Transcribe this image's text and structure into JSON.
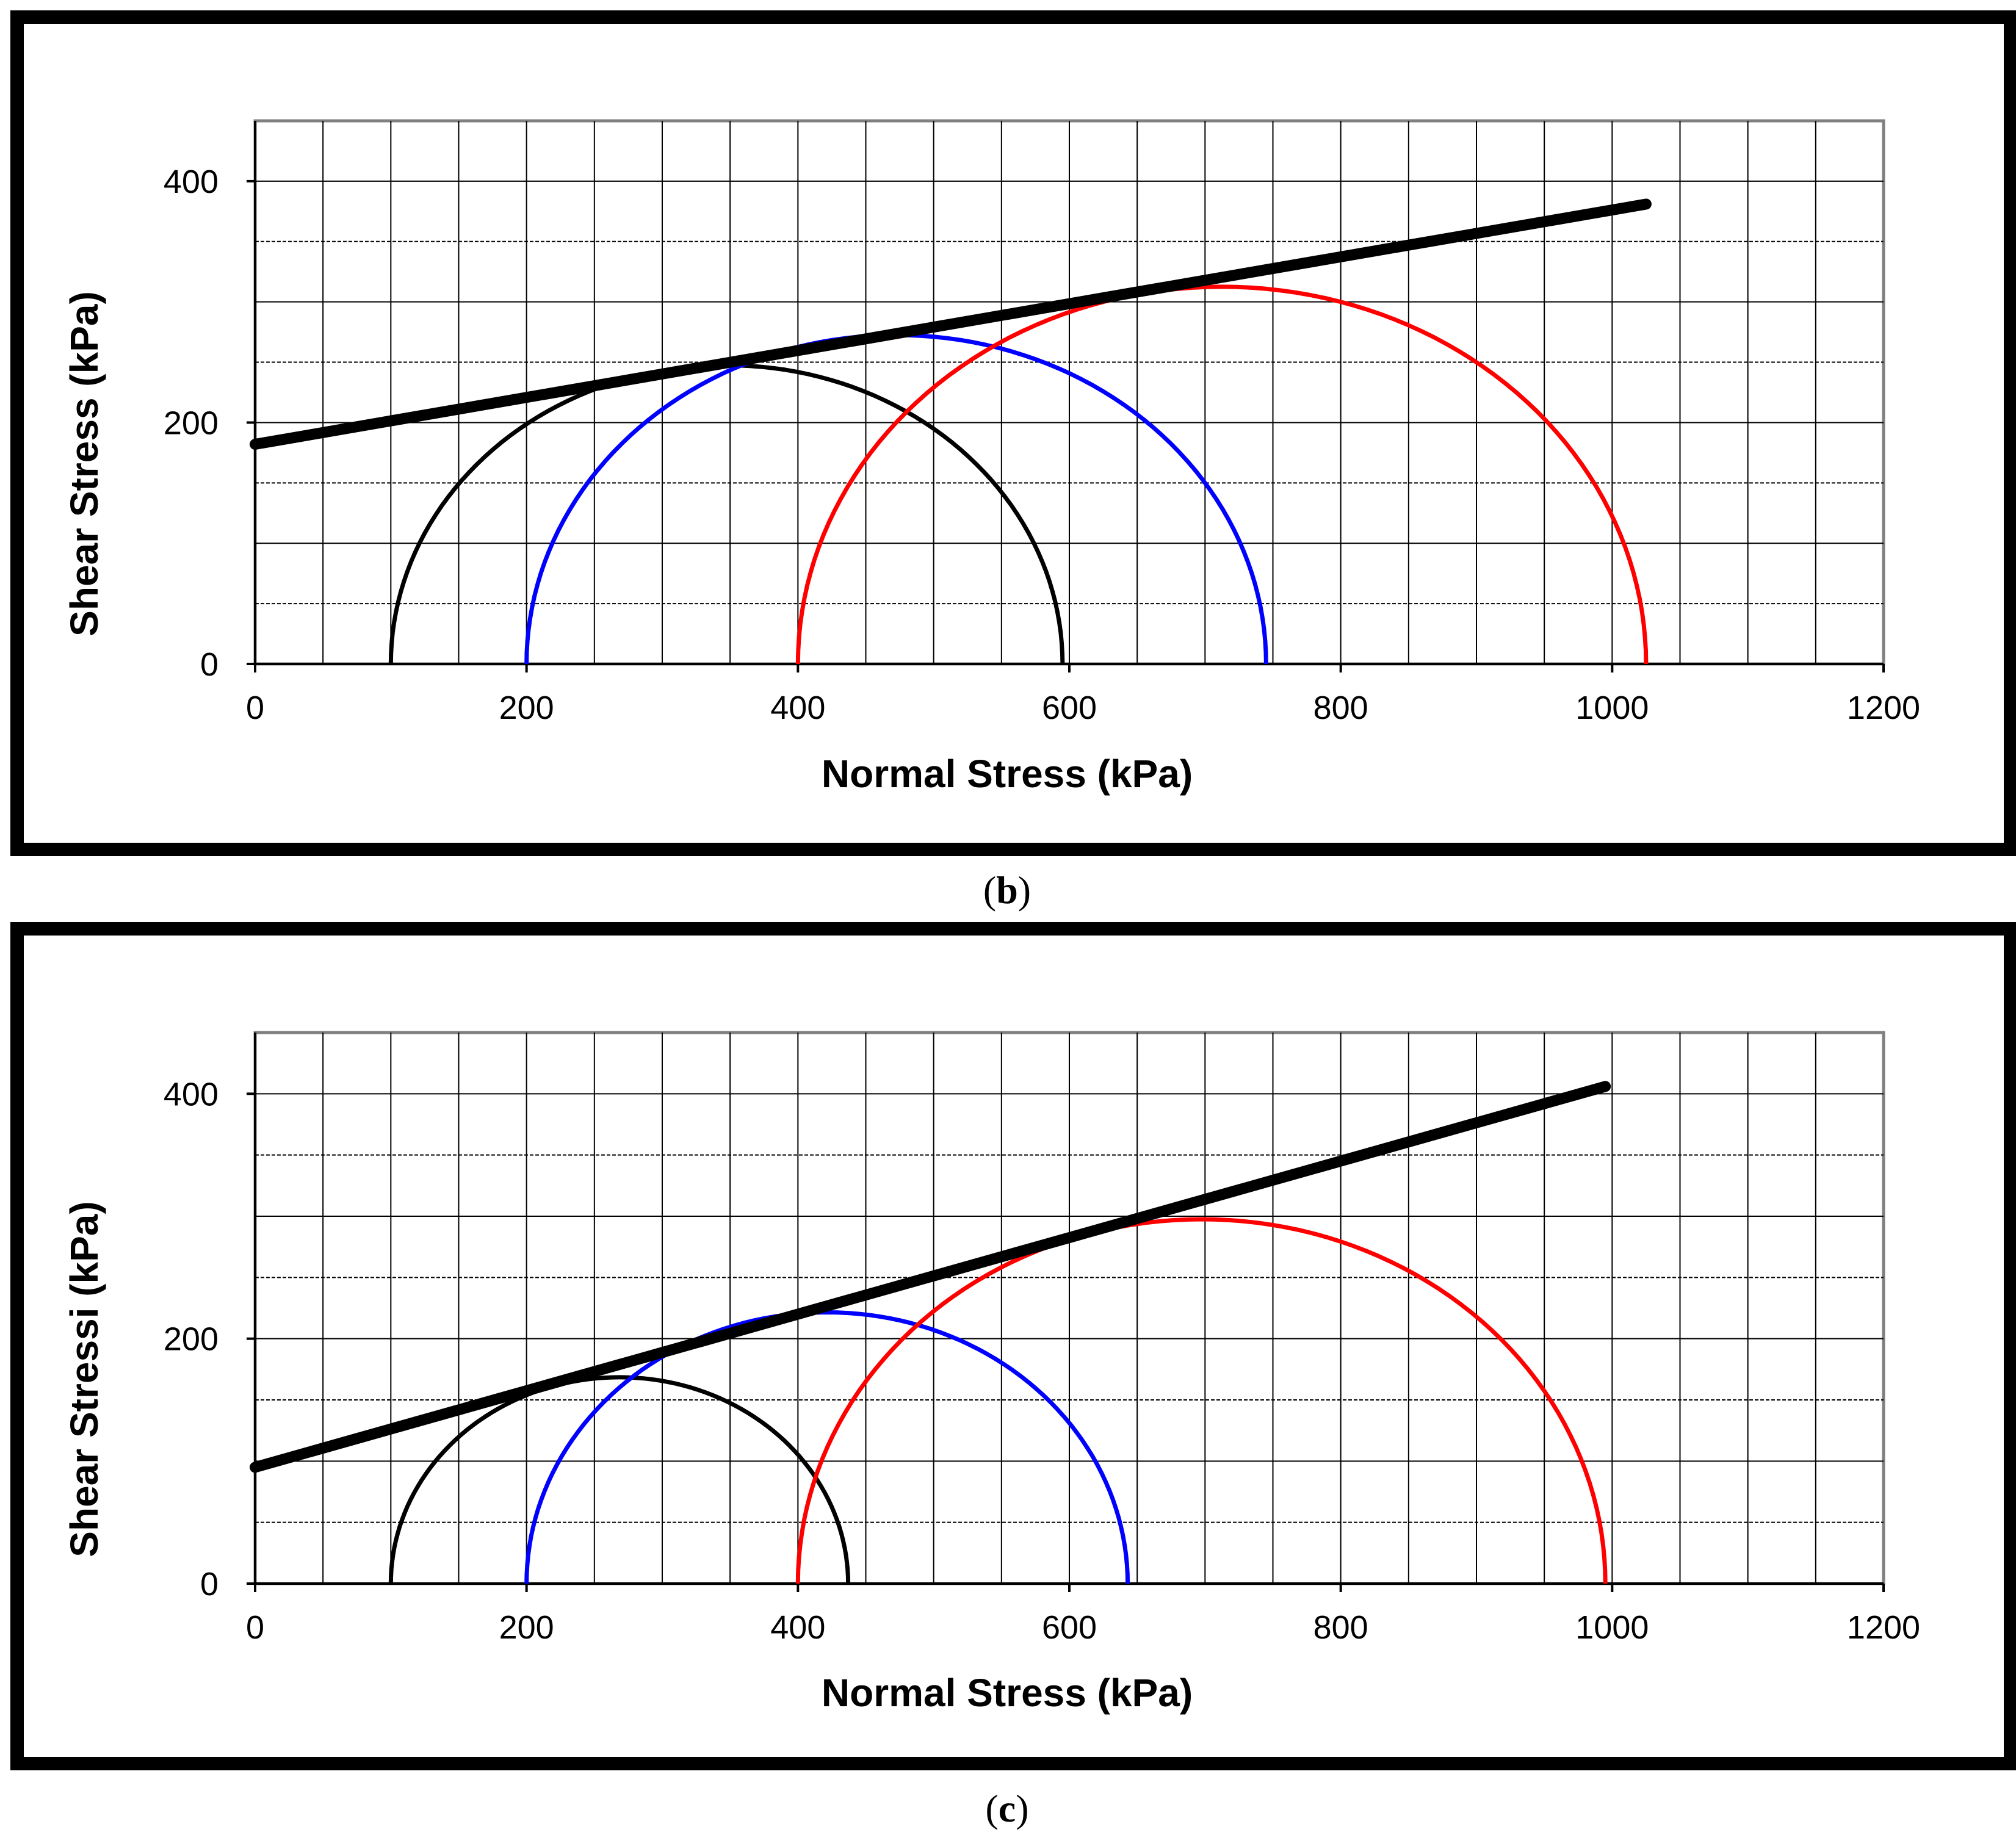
{
  "chart_data": [
    {
      "type": "line",
      "panel_label": "b",
      "caption": {
        "open": "(",
        "letter": "b",
        "close": ")"
      },
      "xlabel": "Normal Stress (kPa)",
      "ylabel": "Shear Stress (kPa)",
      "xlim": [
        0,
        1200
      ],
      "ylim": [
        0,
        450
      ],
      "xticks": [
        0,
        200,
        400,
        600,
        800,
        1000,
        1200
      ],
      "xtick_labels": [
        "0",
        "200",
        "400",
        "600",
        "800",
        "1000",
        "1200"
      ],
      "yticks": [
        0,
        200,
        400
      ],
      "ytick_labels": [
        "0",
        "200",
        "400"
      ],
      "grid": {
        "x_step": 50,
        "y_step": 50
      },
      "circles": [
        {
          "name": "circle-1",
          "sigma3": 100,
          "sigma1": 595,
          "color": "#000000"
        },
        {
          "name": "circle-2",
          "sigma3": 200,
          "sigma1": 745,
          "color": "#0000ff"
        },
        {
          "name": "circle-3",
          "sigma3": 400,
          "sigma1": 1025,
          "color": "#ff0000"
        }
      ],
      "envelope": {
        "x": [
          0,
          1025
        ],
        "y": [
          182,
          381
        ],
        "color": "#000000"
      }
    },
    {
      "type": "line",
      "panel_label": "c",
      "caption": {
        "open": "(",
        "letter": "c",
        "close": ")"
      },
      "xlabel": "Normal Stress (kPa)",
      "ylabel": "Shear Stressi (kPa)",
      "xlim": [
        0,
        1200
      ],
      "ylim": [
        0,
        450
      ],
      "xticks": [
        0,
        200,
        400,
        600,
        800,
        1000,
        1200
      ],
      "xtick_labels": [
        "0",
        "200",
        "400",
        "600",
        "800",
        "1000",
        "1200"
      ],
      "yticks": [
        0,
        200,
        400
      ],
      "ytick_labels": [
        "0",
        "200",
        "400"
      ],
      "grid": {
        "x_step": 50,
        "y_step": 50
      },
      "circles": [
        {
          "name": "circle-1",
          "sigma3": 100,
          "sigma1": 437,
          "color": "#000000"
        },
        {
          "name": "circle-2",
          "sigma3": 200,
          "sigma1": 643,
          "color": "#0000ff"
        },
        {
          "name": "circle-3",
          "sigma3": 400,
          "sigma1": 995,
          "color": "#ff0000"
        }
      ],
      "envelope": {
        "x": [
          0,
          995
        ],
        "y": [
          95,
          406
        ],
        "color": "#000000"
      }
    }
  ]
}
